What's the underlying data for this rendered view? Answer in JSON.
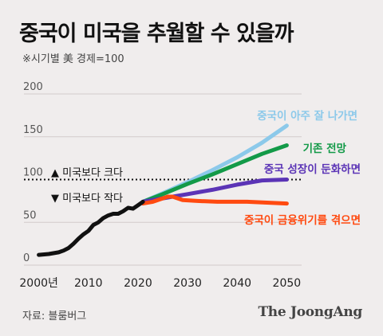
{
  "chart_data": {
    "type": "line",
    "title": "중국이 미국을 추월할 수 있을까",
    "subtitle": "※시기별 美 경제=100",
    "x_ticks": [
      "2000년",
      "2010",
      "2020",
      "2030",
      "2040",
      "2050"
    ],
    "x_tick_values": [
      2000,
      2010,
      2020,
      2030,
      2040,
      2050
    ],
    "y_ticks": [
      0,
      50,
      100,
      150,
      200
    ],
    "xlim": [
      1997,
      2053
    ],
    "ylim": [
      0,
      200
    ],
    "reference_line": {
      "y": 100,
      "style": "dotted",
      "color": "#111111"
    },
    "annotations": {
      "above": "▲ 미국보다 크다",
      "below": "▼ 미국보다 작다"
    },
    "historical": {
      "color": "#111111",
      "points": [
        [
          2000,
          12
        ],
        [
          2002,
          13
        ],
        [
          2004,
          15
        ],
        [
          2005,
          17
        ],
        [
          2006,
          20
        ],
        [
          2007,
          25
        ],
        [
          2008,
          31
        ],
        [
          2009,
          36
        ],
        [
          2010,
          40
        ],
        [
          2011,
          47
        ],
        [
          2012,
          50
        ],
        [
          2013,
          55
        ],
        [
          2014,
          58
        ],
        [
          2015,
          60
        ],
        [
          2016,
          60
        ],
        [
          2017,
          63
        ],
        [
          2018,
          67
        ],
        [
          2019,
          66
        ],
        [
          2020,
          70
        ],
        [
          2021,
          74
        ]
      ]
    },
    "series": [
      {
        "name": "중국이 아주 잘 나가면",
        "color": "#8cc9ea",
        "points": [
          [
            2021,
            74
          ],
          [
            2025,
            84
          ],
          [
            2030,
            97
          ],
          [
            2035,
            111
          ],
          [
            2040,
            126
          ],
          [
            2045,
            143
          ],
          [
            2050,
            163
          ]
        ]
      },
      {
        "name": "기존 전망",
        "color": "#139a48",
        "points": [
          [
            2021,
            74
          ],
          [
            2025,
            83
          ],
          [
            2030,
            95
          ],
          [
            2035,
            106
          ],
          [
            2040,
            118
          ],
          [
            2045,
            130
          ],
          [
            2050,
            140
          ]
        ]
      },
      {
        "name": "중국 성장이 둔화하면",
        "color": "#5b34b6",
        "points": [
          [
            2021,
            74
          ],
          [
            2025,
            78
          ],
          [
            2030,
            83
          ],
          [
            2035,
            88
          ],
          [
            2040,
            94
          ],
          [
            2045,
            99
          ],
          [
            2050,
            100
          ]
        ]
      },
      {
        "name": "중국이 금융위기를 겪으면",
        "color": "#ff4a10",
        "points": [
          [
            2021,
            72
          ],
          [
            2023,
            74
          ],
          [
            2026,
            80
          ],
          [
            2027,
            80
          ],
          [
            2029,
            76
          ],
          [
            2032,
            75
          ],
          [
            2036,
            74
          ],
          [
            2042,
            74
          ],
          [
            2046,
            73
          ],
          [
            2050,
            72
          ]
        ]
      }
    ]
  },
  "source": "자료: 블룸버그",
  "brand": "The JoongAng"
}
